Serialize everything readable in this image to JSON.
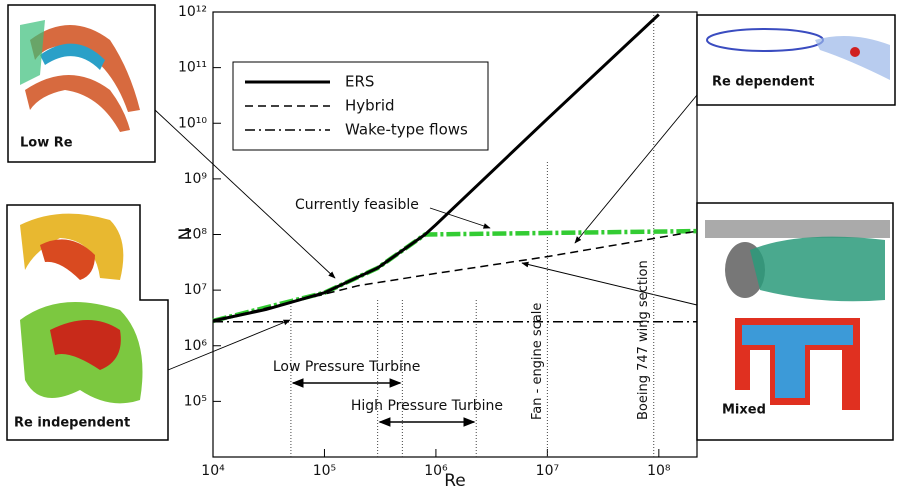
{
  "chart_data": {
    "type": "line",
    "xlabel": "Re",
    "ylabel": "N",
    "xscale": "log",
    "yscale": "log",
    "xlim": [
      10000,
      220000000
    ],
    "ylim": [
      10000,
      1000000000000
    ],
    "xticks": [
      {
        "value": 10000,
        "label": "10⁴"
      },
      {
        "value": 100000,
        "label": "10⁵"
      },
      {
        "value": 1000000,
        "label": "10⁶"
      },
      {
        "value": 10000000,
        "label": "10⁷"
      },
      {
        "value": 100000000,
        "label": "10⁸"
      }
    ],
    "yticks": [
      {
        "value": 100000,
        "label": "10⁵"
      },
      {
        "value": 1000000,
        "label": "10⁶"
      },
      {
        "value": 10000000,
        "label": "10⁷"
      },
      {
        "value": 100000000,
        "label": "10⁸"
      },
      {
        "value": 1000000000,
        "label": "10⁹"
      },
      {
        "value": 10000000000,
        "label": "10¹⁰"
      },
      {
        "value": 100000000000,
        "label": "10¹¹"
      },
      {
        "value": 1000000000000,
        "label": "10¹²"
      }
    ],
    "series": [
      {
        "name": "ERS",
        "color": "#000000",
        "style": "solid",
        "legend": true,
        "x": [
          10000,
          30000,
          100000,
          300000,
          800000,
          1000000,
          10000000,
          100000000
        ],
        "values": [
          2800000,
          4500000,
          9000000,
          25000000,
          100000000,
          150000000,
          12000000000,
          900000000000
        ]
      },
      {
        "name": "Hybrid",
        "color": "#000000",
        "style": "dashed",
        "legend": true,
        "x": [
          10000,
          100000,
          200000,
          1000000,
          10000000,
          220000000
        ],
        "values": [
          2800000,
          8500000,
          12000000,
          20000000,
          40000000,
          115000000
        ]
      },
      {
        "name": "Wake-type flows",
        "color": "#000000",
        "style": "dashdot",
        "legend": true,
        "x": [
          10000,
          220000000
        ],
        "values": [
          2700000,
          2700000
        ]
      },
      {
        "name": "Currently feasible",
        "color": "#33cc33",
        "style": "thickdashdot",
        "legend": false,
        "x": [
          10000,
          100000,
          300000,
          800000,
          220000000
        ],
        "values": [
          2800000,
          9000000,
          25000000,
          100000000,
          115000000
        ]
      }
    ],
    "ranges": [
      {
        "label": "Low Pressure Turbine",
        "from": 50000,
        "to": 500000
      },
      {
        "label": "High Pressure Turbine",
        "from": 300000,
        "to": 2300000
      }
    ],
    "markers": [
      {
        "label": "Fan - engine scale",
        "x": 10000000
      },
      {
        "label": "Boeing 747 wing section",
        "x": 90000000
      }
    ],
    "insets": [
      {
        "label": "Low Re"
      },
      {
        "label": "Re dependent"
      },
      {
        "label": "Re independent"
      },
      {
        "label": "Mixed"
      }
    ]
  }
}
